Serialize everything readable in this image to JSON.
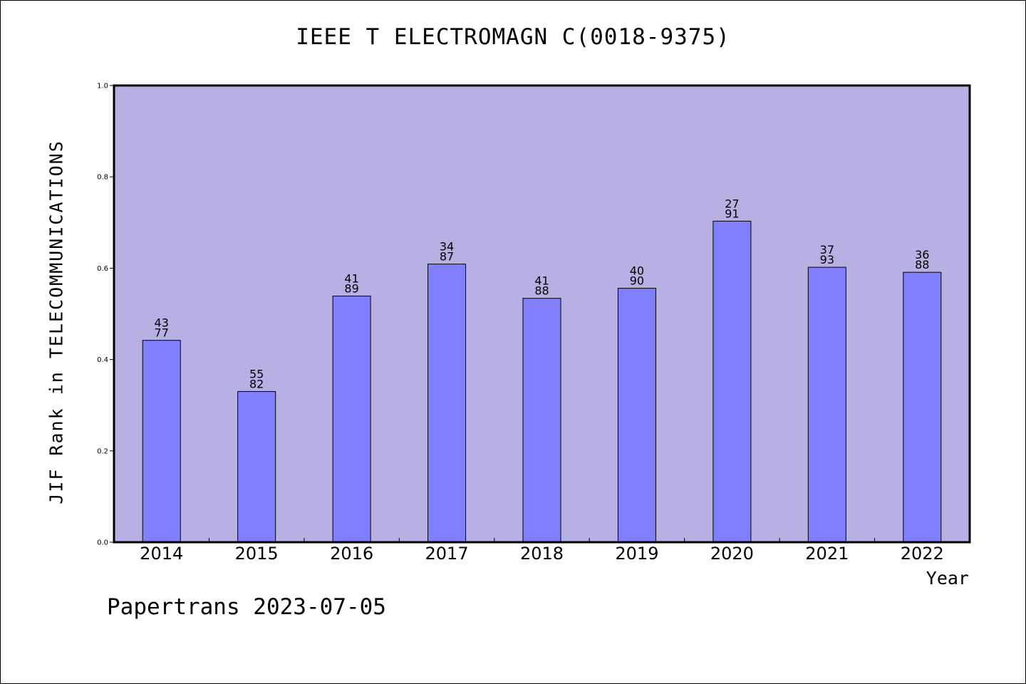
{
  "chart_data": {
    "type": "bar",
    "title": "IEEE T ELECTROMAGN C(0018-9375)",
    "xlabel": "Year",
    "ylabel": "JIF Rank in TELECOMMUNICATIONS",
    "categories": [
      "2014",
      "2015",
      "2016",
      "2017",
      "2018",
      "2019",
      "2020",
      "2021",
      "2022"
    ],
    "values": [
      0.442,
      0.33,
      0.539,
      0.609,
      0.534,
      0.556,
      0.703,
      0.602,
      0.591
    ],
    "rank": [
      "43",
      "55",
      "41",
      "34",
      "41",
      "40",
      "27",
      "37",
      "36"
    ],
    "total": [
      "77",
      "82",
      "89",
      "87",
      "88",
      "90",
      "91",
      "93",
      "88"
    ],
    "ylim": [
      0,
      1.0
    ],
    "yticks": [
      "0.0",
      "0.2",
      "0.4",
      "0.6",
      "0.8",
      "1.0"
    ],
    "grid": false,
    "legend": "none",
    "colors": {
      "plot_background": "#b6b0e3",
      "bar_fill": "#8080ff",
      "bar_stroke": "#000000"
    }
  },
  "footer": {
    "watermark": "Papertrans 2023-07-05"
  }
}
